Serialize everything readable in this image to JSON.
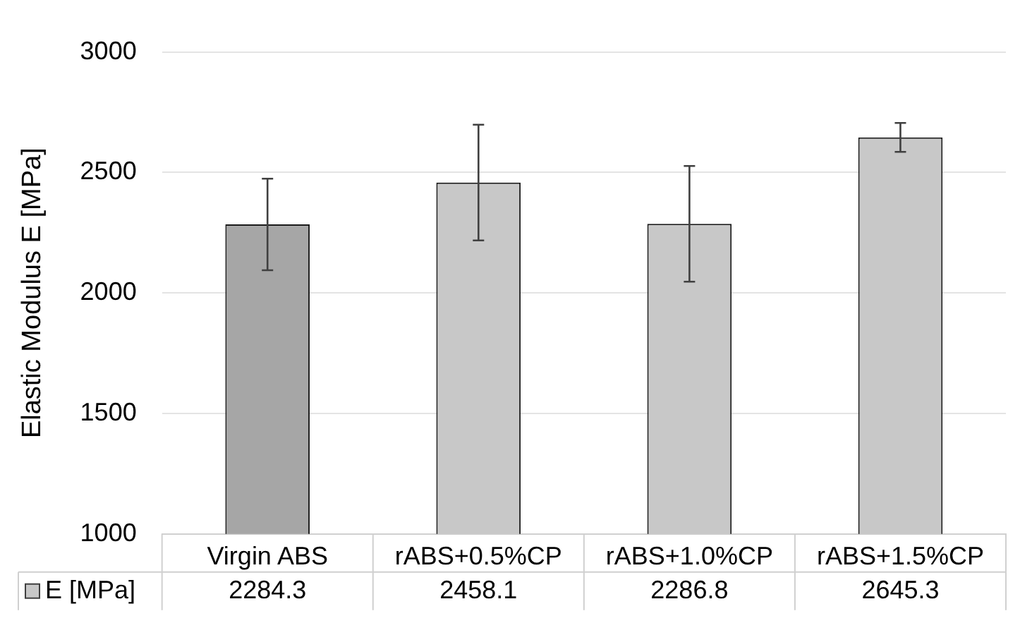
{
  "chart_data": {
    "type": "bar",
    "ylabel": "Elastic Modulus E [MPa]",
    "categories": [
      "Virgin ABS",
      "rABS+0.5%CP",
      "rABS+1.0%CP",
      "rABS+1.5%CP"
    ],
    "series": [
      {
        "name": "E [MPa]",
        "color": "#c8c8c8",
        "colors": [
          "#a6a6a6",
          "#c8c8c8",
          "#c8c8c8",
          "#c8c8c8"
        ],
        "values": [
          2284.3,
          2458.1,
          2286.8,
          2645.3
        ],
        "errors": [
          190,
          240,
          240,
          60
        ]
      }
    ],
    "ylim": [
      1000,
      3000
    ],
    "yticks": [
      1000,
      1500,
      2000,
      2500,
      3000
    ],
    "grid": "y",
    "data_labels": true
  }
}
